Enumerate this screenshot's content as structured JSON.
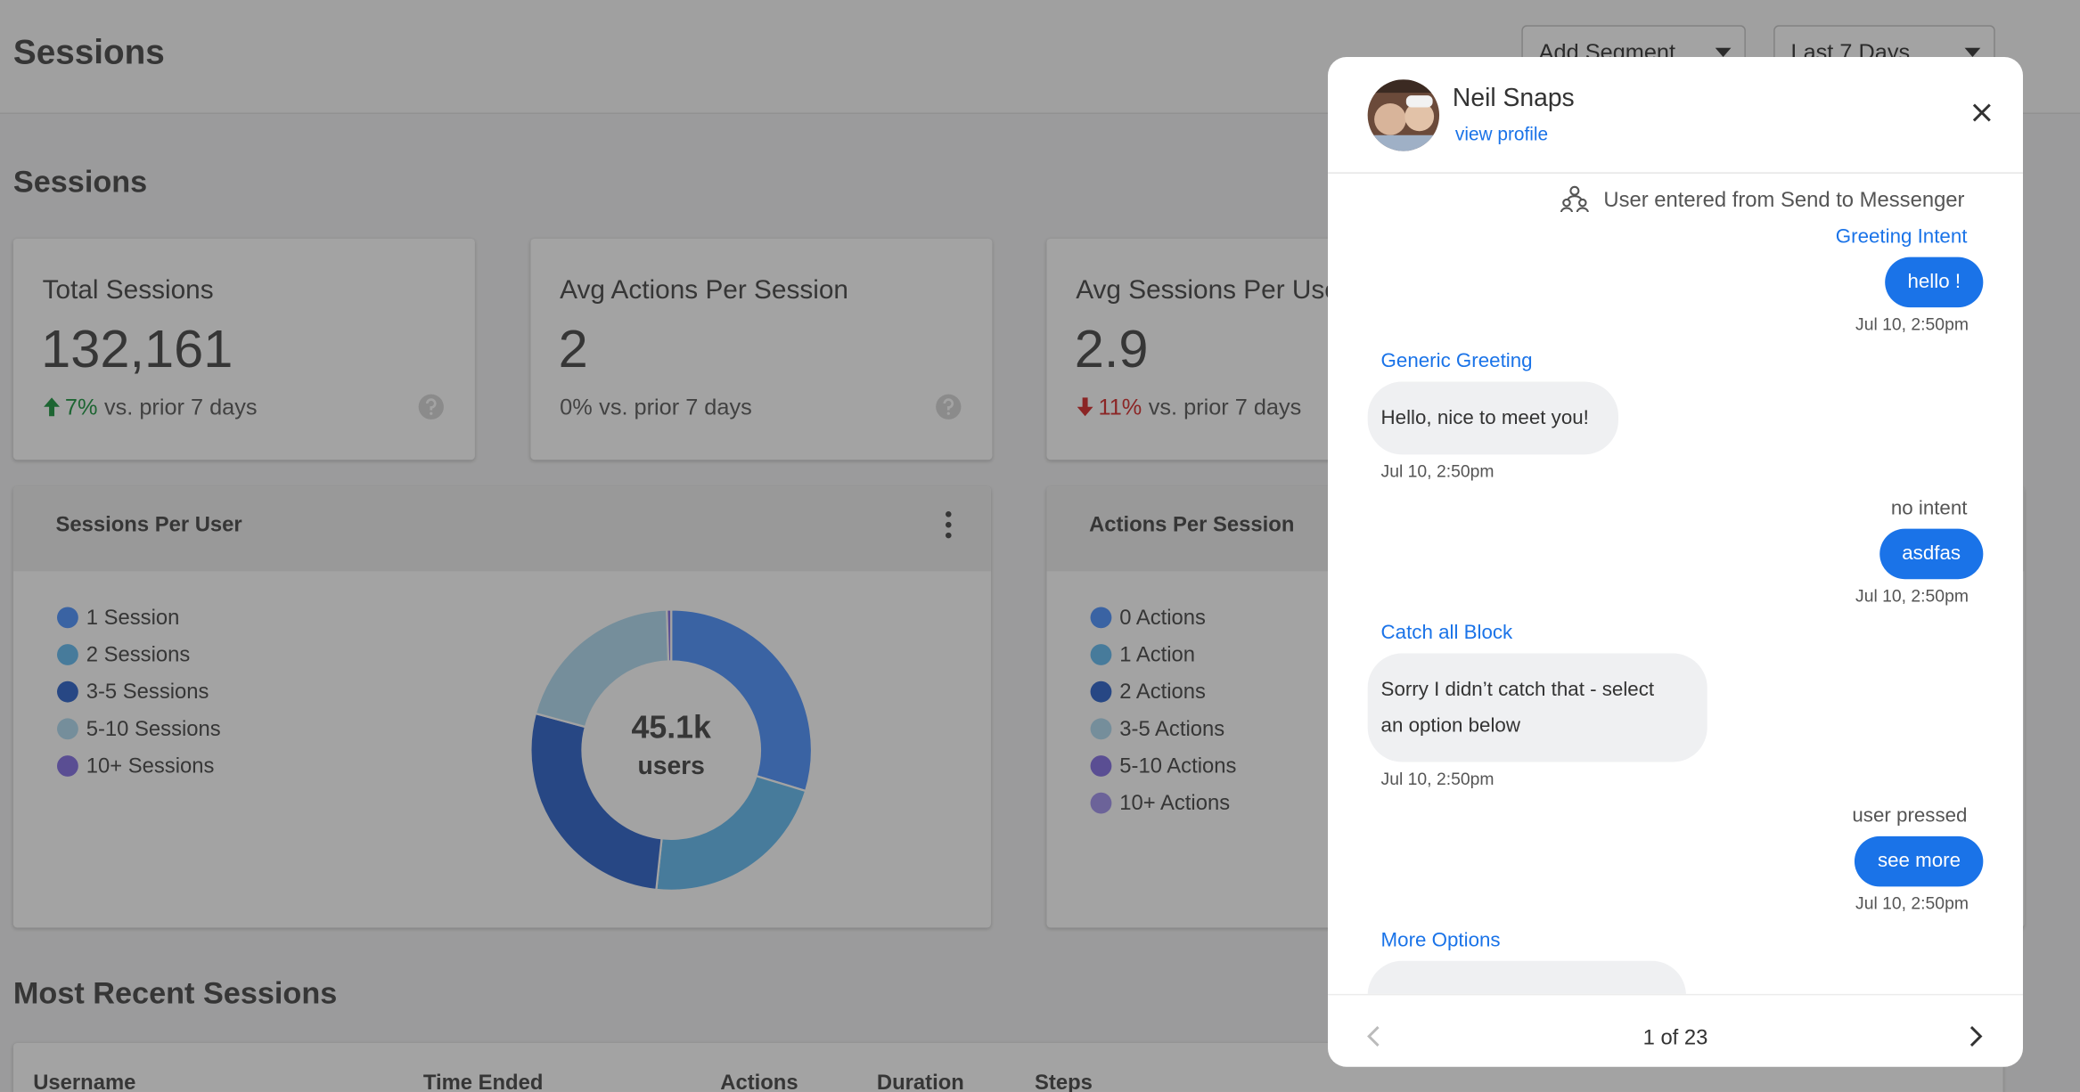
{
  "header": {
    "title": "Sessions",
    "buttons": [
      "Add Segment",
      "Last 7 Days"
    ]
  },
  "section_title": "Sessions",
  "stats": [
    {
      "label": "Total Sessions",
      "value": "132,161",
      "change": "7%",
      "change_text": "vs. prior 7 days",
      "direction": "up",
      "change_color": "#2e9e4f"
    },
    {
      "label": "Avg Actions Per Session",
      "value": "2",
      "change": "0%",
      "change_text": "vs. prior 7 days",
      "direction": "none",
      "change_color": "#6b6b6b"
    },
    {
      "label": "Avg Sessions Per User",
      "value": "2.9",
      "change": "11%",
      "change_text": "vs. prior 7 days",
      "direction": "down",
      "change_color": "#d93b3b"
    }
  ],
  "charts": [
    {
      "title": "Sessions Per User",
      "type": "donut",
      "center": [
        "45.1k",
        "users"
      ],
      "categories": [
        "1 Session",
        "2 Sessions",
        "3-5 Sessions",
        "5-10 Sessions",
        "10+ Sessions"
      ],
      "colors": [
        "#5b9bff",
        "#6fc0f2",
        "#3d6fcf",
        "#b8dff2",
        "#8d7be6"
      ],
      "values": [
        29.7,
        22,
        27.5,
        20.3,
        0.5
      ]
    },
    {
      "title": "Actions Per Session",
      "categories": [
        "0 Actions",
        "1 Action",
        "2 Actions",
        "3-5 Actions",
        "5-10 Actions",
        "10+ Actions"
      ],
      "colors": [
        "#5b9bff",
        "#6fc0f2",
        "#3d6fcf",
        "#b8dff2",
        "#8d7be6",
        "#a99cf0"
      ]
    }
  ],
  "recent": {
    "title": "Most Recent Sessions",
    "columns": [
      "Username",
      "Time Ended",
      "Actions",
      "Duration",
      "Steps"
    ]
  },
  "modal": {
    "name": "Neil Snaps",
    "profile_link": "view profile",
    "entered": "User entered from Send to Messenger",
    "messages": [
      {
        "label": "Greeting Intent",
        "label_color": "#1a73e8",
        "side": "user",
        "text": "hello !",
        "time": "Jul 10, 2:50pm"
      },
      {
        "label": "Generic Greeting",
        "label_color": "#1a73e8",
        "side": "bot",
        "text": "Hello, nice to meet you!",
        "time": "Jul 10, 2:50pm"
      },
      {
        "label": "no intent",
        "label_color": "#555555",
        "side": "user",
        "text": "asdfas",
        "time": "Jul 10, 2:50pm"
      },
      {
        "label": "Catch all Block",
        "label_color": "#1a73e8",
        "side": "bot",
        "text": "Sorry I didn’t catch that - select an option below",
        "time": "Jul 10, 2:50pm"
      },
      {
        "label": "user pressed",
        "label_color": "#555555",
        "side": "user",
        "text": "see more",
        "time": "Jul 10, 2:50pm"
      },
      {
        "label": "More Options",
        "label_color": "#1a73e8",
        "side": "bot"
      }
    ],
    "pager": "1 of 23"
  }
}
